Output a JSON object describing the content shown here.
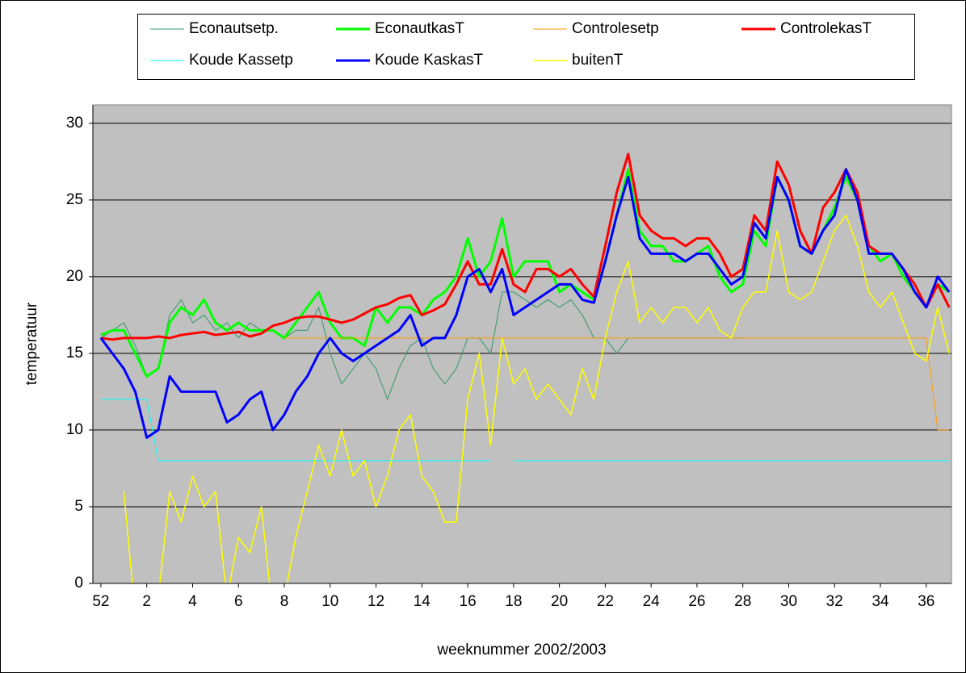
{
  "chart_data": {
    "type": "line",
    "x_label": "weeknummer 2002/2003",
    "y_label": "temperatuur",
    "x": [
      0,
      0.5,
      1,
      1.5,
      2,
      2.5,
      3,
      3.5,
      4,
      4.5,
      5,
      5.5,
      6,
      6.5,
      7,
      7.5,
      8,
      8.5,
      9,
      9.5,
      10,
      10.5,
      11,
      11.5,
      12,
      12.5,
      13,
      13.5,
      14,
      14.5,
      15,
      15.5,
      16,
      16.5,
      17,
      17.5,
      18,
      18.5,
      19,
      19.5,
      20,
      20.5,
      21,
      21.5,
      22,
      22.5,
      23,
      23.5,
      24,
      24.5,
      25,
      25.5,
      26,
      26.5,
      27,
      27.5,
      28,
      28.5,
      29,
      29.5,
      30,
      30.5,
      31,
      31.5,
      32,
      32.5,
      33,
      33.5,
      34,
      34.5,
      35,
      35.5,
      36,
      36.5,
      37
    ],
    "xlim": [
      -0.35,
      37.1
    ],
    "xticks": [
      {
        "value": 0,
        "label": "52"
      },
      2,
      4,
      6,
      8,
      10,
      12,
      14,
      16,
      18,
      20,
      22,
      24,
      26,
      28,
      30,
      32,
      34,
      36
    ],
    "ylim": [
      0,
      31.2
    ],
    "yticks": [
      0,
      5,
      10,
      15,
      20,
      25,
      30
    ],
    "grid": true,
    "legend": "top",
    "series": [
      {
        "name": "Econautsetp.",
        "color": "#339966",
        "line_width": 1,
        "values": [
          16,
          16.5,
          17,
          15.5,
          13.5,
          14,
          17.5,
          18.5,
          17,
          17.5,
          16.5,
          17,
          16,
          17,
          16.5,
          16.5,
          16,
          16.5,
          16.5,
          18,
          15,
          13,
          14,
          15,
          14,
          12,
          14,
          15.5,
          16,
          14,
          13,
          14,
          16,
          16,
          15,
          19,
          19,
          18.5,
          18,
          18.5,
          18,
          18.5,
          17.5,
          16,
          16,
          15,
          16,
          16,
          16,
          16,
          16,
          16,
          16,
          16,
          16,
          16,
          16,
          null,
          null,
          null,
          null,
          null,
          null,
          null,
          null,
          null,
          null,
          null,
          null,
          null,
          null,
          null,
          null,
          null,
          null
        ]
      },
      {
        "name": "EconautkasT",
        "color": "#00ff00",
        "line_width": 3,
        "values": [
          16.2,
          16.5,
          16.5,
          15,
          13.5,
          14,
          17,
          18,
          17.5,
          18.5,
          17,
          16.5,
          17,
          16.5,
          16.5,
          16.5,
          16,
          17,
          18,
          19,
          17,
          16,
          16,
          15.5,
          18,
          17,
          18,
          18,
          17.5,
          18.5,
          19,
          20,
          22.5,
          20,
          21,
          23.8,
          20,
          21,
          21,
          21,
          19,
          19.5,
          19,
          18.5,
          21,
          24,
          27,
          23,
          22,
          22,
          21,
          21,
          21.5,
          22,
          20,
          19,
          19.5,
          23,
          22,
          26.5,
          25,
          22,
          21.5,
          23,
          24.5,
          26.5,
          25,
          22,
          21,
          21.5,
          20,
          19,
          18,
          19.5,
          19
        ]
      },
      {
        "name": "Controlesetp",
        "color": "#ff9900",
        "line_width": 1,
        "values": [
          null,
          null,
          null,
          null,
          null,
          null,
          null,
          null,
          null,
          null,
          null,
          null,
          null,
          null,
          null,
          null,
          16,
          16,
          16,
          16,
          16,
          16,
          16,
          16,
          16,
          16,
          16,
          16,
          16,
          16,
          16,
          16,
          16,
          16,
          16,
          16,
          16,
          16,
          16,
          16,
          16,
          16,
          16,
          16,
          16,
          16,
          16,
          16,
          16,
          16,
          16,
          16,
          16,
          16,
          16,
          16,
          16,
          16,
          16,
          16,
          16,
          16,
          16,
          16,
          16,
          16,
          16,
          16,
          16,
          16,
          16,
          16,
          16,
          10,
          10
        ]
      },
      {
        "name": "ControlekasT",
        "color": "#ff0000",
        "line_width": 3,
        "values": [
          16,
          15.9,
          16,
          16,
          16,
          16.1,
          16,
          16.2,
          16.3,
          16.4,
          16.2,
          16.3,
          16.4,
          16.1,
          16.3,
          16.8,
          17,
          17.3,
          17.4,
          17.4,
          17.2,
          17,
          17.2,
          17.6,
          18,
          18.2,
          18.6,
          18.8,
          17.5,
          17.8,
          18.2,
          19.5,
          21,
          19.5,
          19.5,
          21.8,
          19.5,
          19,
          20.5,
          20.5,
          20,
          20.5,
          19.5,
          18.7,
          22,
          25.5,
          28,
          24,
          23,
          22.5,
          22.5,
          22,
          22.5,
          22.5,
          21.5,
          20,
          20.5,
          24,
          23,
          27.5,
          26,
          23,
          21.5,
          24.5,
          25.5,
          27,
          25.5,
          22,
          21.5,
          21.5,
          20.5,
          19.5,
          18,
          19.5,
          18
        ]
      },
      {
        "name": "Koude Kassetp",
        "color": "#00ffff",
        "line_width": 1,
        "values": [
          12,
          12,
          12,
          12,
          12,
          8,
          8,
          8,
          8,
          8,
          8,
          8,
          8,
          8,
          8,
          8,
          8,
          8,
          8,
          8,
          8,
          8,
          8,
          8,
          8,
          8,
          8,
          8,
          8,
          8,
          8,
          8,
          8,
          8,
          8,
          null,
          8,
          8,
          8,
          8,
          8,
          8,
          8,
          8,
          8,
          8,
          8,
          8,
          8,
          8,
          8,
          8,
          8,
          8,
          8,
          8,
          8,
          8,
          8,
          8,
          8,
          8,
          8,
          8,
          8,
          8,
          8,
          8,
          8,
          8,
          8,
          8,
          8,
          8,
          8
        ]
      },
      {
        "name": "Koude KaskasT",
        "color": "#0000ff",
        "line_width": 3,
        "values": [
          16,
          15,
          14,
          12.5,
          9.5,
          10,
          13.5,
          12.5,
          12.5,
          12.5,
          12.5,
          10.5,
          11,
          12,
          12.5,
          10,
          11,
          12.5,
          13.5,
          15,
          16,
          15,
          14.5,
          15,
          15.5,
          16,
          16.5,
          17.5,
          15.5,
          16,
          16,
          17.5,
          20,
          20.5,
          19,
          20.5,
          17.5,
          18,
          18.5,
          19,
          19.5,
          19.5,
          18.5,
          18.3,
          21,
          24,
          26.5,
          22.5,
          21.5,
          21.5,
          21.5,
          21,
          21.5,
          21.5,
          20.5,
          19.5,
          20,
          23.5,
          22.5,
          26.5,
          25,
          22,
          21.5,
          23,
          24,
          27,
          25,
          21.5,
          21.5,
          21.5,
          20.5,
          19,
          18,
          20,
          19
        ]
      },
      {
        "name": "buitenT",
        "color": "#ffff00",
        "line_width": 1.5,
        "values": [
          null,
          null,
          6,
          -2,
          -3,
          -1,
          6,
          4,
          7,
          5,
          6,
          -1,
          3,
          2,
          5,
          -2,
          -1,
          3,
          6,
          9,
          7,
          10,
          7,
          8,
          5,
          7,
          10,
          11,
          7,
          6,
          4,
          4,
          12,
          15,
          9,
          16,
          13,
          14,
          12,
          13,
          12,
          11,
          14,
          12,
          16,
          19,
          21,
          17,
          18,
          17,
          18,
          18,
          17,
          18,
          16.5,
          16,
          18,
          19,
          19,
          23,
          19,
          18.5,
          19,
          21,
          23,
          24,
          22,
          19,
          18,
          19,
          17,
          15,
          14.5,
          18,
          15
        ]
      }
    ]
  }
}
